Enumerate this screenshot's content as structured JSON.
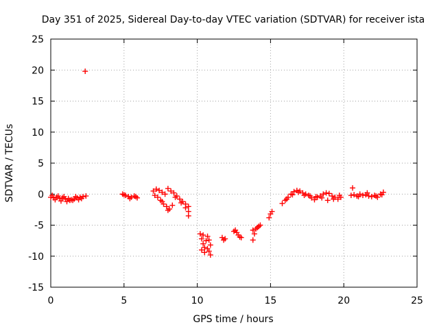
{
  "chart_data": {
    "type": "scatter",
    "title": "Day 351 of 2025, Sidereal Day-to-day VTEC variation (SDTVAR) for receiver ista",
    "xlabel": "GPS time / hours",
    "ylabel": "SDTVAR / TECUs",
    "xlim": [
      0,
      25
    ],
    "ylim": [
      -15,
      25
    ],
    "xticks": [
      0,
      5,
      10,
      15,
      20,
      25
    ],
    "yticks": [
      -15,
      -10,
      -5,
      0,
      5,
      10,
      15,
      20,
      25
    ],
    "xtick_labels": [
      "0",
      "5",
      "10",
      "15",
      "20",
      "25"
    ],
    "ytick_labels": [
      "-15",
      "-10",
      "-5",
      "0",
      "5",
      "10",
      "15",
      "20",
      "25"
    ],
    "grid": true,
    "marker": "+",
    "color": "#ff0000",
    "series": [
      {
        "name": "SDTVAR",
        "x": [
          0.0,
          0.2,
          0.4,
          0.6,
          0.8,
          1.0,
          1.2,
          1.4,
          1.6,
          1.8,
          2.0,
          2.2,
          2.4,
          0.1,
          0.5,
          0.9,
          1.3,
          1.7,
          2.1,
          0.3,
          0.7,
          1.1,
          1.5,
          1.9,
          2.35,
          4.9,
          5.1,
          5.3,
          5.5,
          5.7,
          5.9,
          5.0,
          5.4,
          5.8,
          7.0,
          7.2,
          7.4,
          7.6,
          7.8,
          8.0,
          8.2,
          8.4,
          8.6,
          8.8,
          9.0,
          9.2,
          9.4,
          7.3,
          7.5,
          7.7,
          7.9,
          8.1,
          8.3,
          7.1,
          7.6,
          8.0,
          8.5,
          8.9,
          9.2,
          9.4,
          9.4,
          10.2,
          10.3,
          10.4,
          10.5,
          10.6,
          10.7,
          10.8,
          10.9,
          10.3,
          10.5,
          10.7,
          10.9,
          10.4,
          10.8,
          11.7,
          11.8,
          11.9,
          12.5,
          12.6,
          12.7,
          12.8,
          12.9,
          13.0,
          13.8,
          13.9,
          14.0,
          14.1,
          14.2,
          14.3,
          13.8,
          14.9,
          15.0,
          15.1,
          15.8,
          16.0,
          16.2,
          16.4,
          16.6,
          16.8,
          17.0,
          17.2,
          17.4,
          17.6,
          17.8,
          18.0,
          18.2,
          18.4,
          18.6,
          18.8,
          19.0,
          19.2,
          19.4,
          19.6,
          19.8,
          16.1,
          16.5,
          16.9,
          17.3,
          17.7,
          18.1,
          18.5,
          18.9,
          19.3,
          19.7,
          20.5,
          20.7,
          20.9,
          21.1,
          21.3,
          21.5,
          21.7,
          21.9,
          22.1,
          22.3,
          22.5,
          22.7,
          20.6,
          21.0,
          21.6,
          22.2,
          22.6
        ],
        "y": [
          -0.5,
          -0.6,
          -0.5,
          -0.7,
          -0.6,
          -0.8,
          -0.7,
          -0.9,
          -0.8,
          -0.6,
          -0.5,
          -0.4,
          -0.3,
          -0.2,
          -0.3,
          -0.4,
          -1.0,
          -0.4,
          -0.7,
          -0.9,
          -1.1,
          -1.2,
          -1.0,
          -0.9,
          19.8,
          0.0,
          -0.2,
          -0.4,
          -0.5,
          -0.3,
          -0.6,
          -0.1,
          -0.7,
          -0.4,
          0.5,
          0.8,
          0.6,
          0.3,
          0.0,
          0.9,
          0.5,
          0.2,
          -0.3,
          -0.8,
          -1.2,
          -1.6,
          -2.0,
          -0.5,
          -1.0,
          -1.6,
          -2.0,
          -2.4,
          -1.8,
          -0.2,
          -1.2,
          -2.6,
          -0.5,
          -1.4,
          -2.2,
          -2.8,
          -3.5,
          -6.4,
          -7.2,
          -8.0,
          -8.6,
          -7.5,
          -6.8,
          -7.4,
          -8.2,
          -9.0,
          -9.4,
          -8.8,
          -9.8,
          -6.6,
          -9.2,
          -7.0,
          -7.4,
          -7.2,
          -6.0,
          -5.8,
          -6.2,
          -6.6,
          -6.9,
          -7.0,
          -5.8,
          -6.4,
          -5.6,
          -5.4,
          -5.2,
          -5.0,
          -7.4,
          -3.8,
          -3.2,
          -2.8,
          -1.5,
          -1.0,
          -0.5,
          0.0,
          0.4,
          0.6,
          0.5,
          0.2,
          0.0,
          -0.2,
          -0.6,
          -0.9,
          -0.5,
          -0.3,
          0.0,
          0.2,
          0.1,
          -0.3,
          -0.5,
          -0.8,
          -0.5,
          -0.8,
          -0.1,
          0.3,
          -0.2,
          -0.3,
          -0.4,
          -0.6,
          -1.0,
          -0.8,
          -0.2,
          -0.2,
          -0.1,
          -0.3,
          0.0,
          -0.2,
          -0.1,
          -0.3,
          -0.4,
          -0.2,
          -0.5,
          0.0,
          0.3,
          1.0,
          -0.4,
          0.2,
          -0.3,
          -0.1
        ]
      }
    ]
  }
}
